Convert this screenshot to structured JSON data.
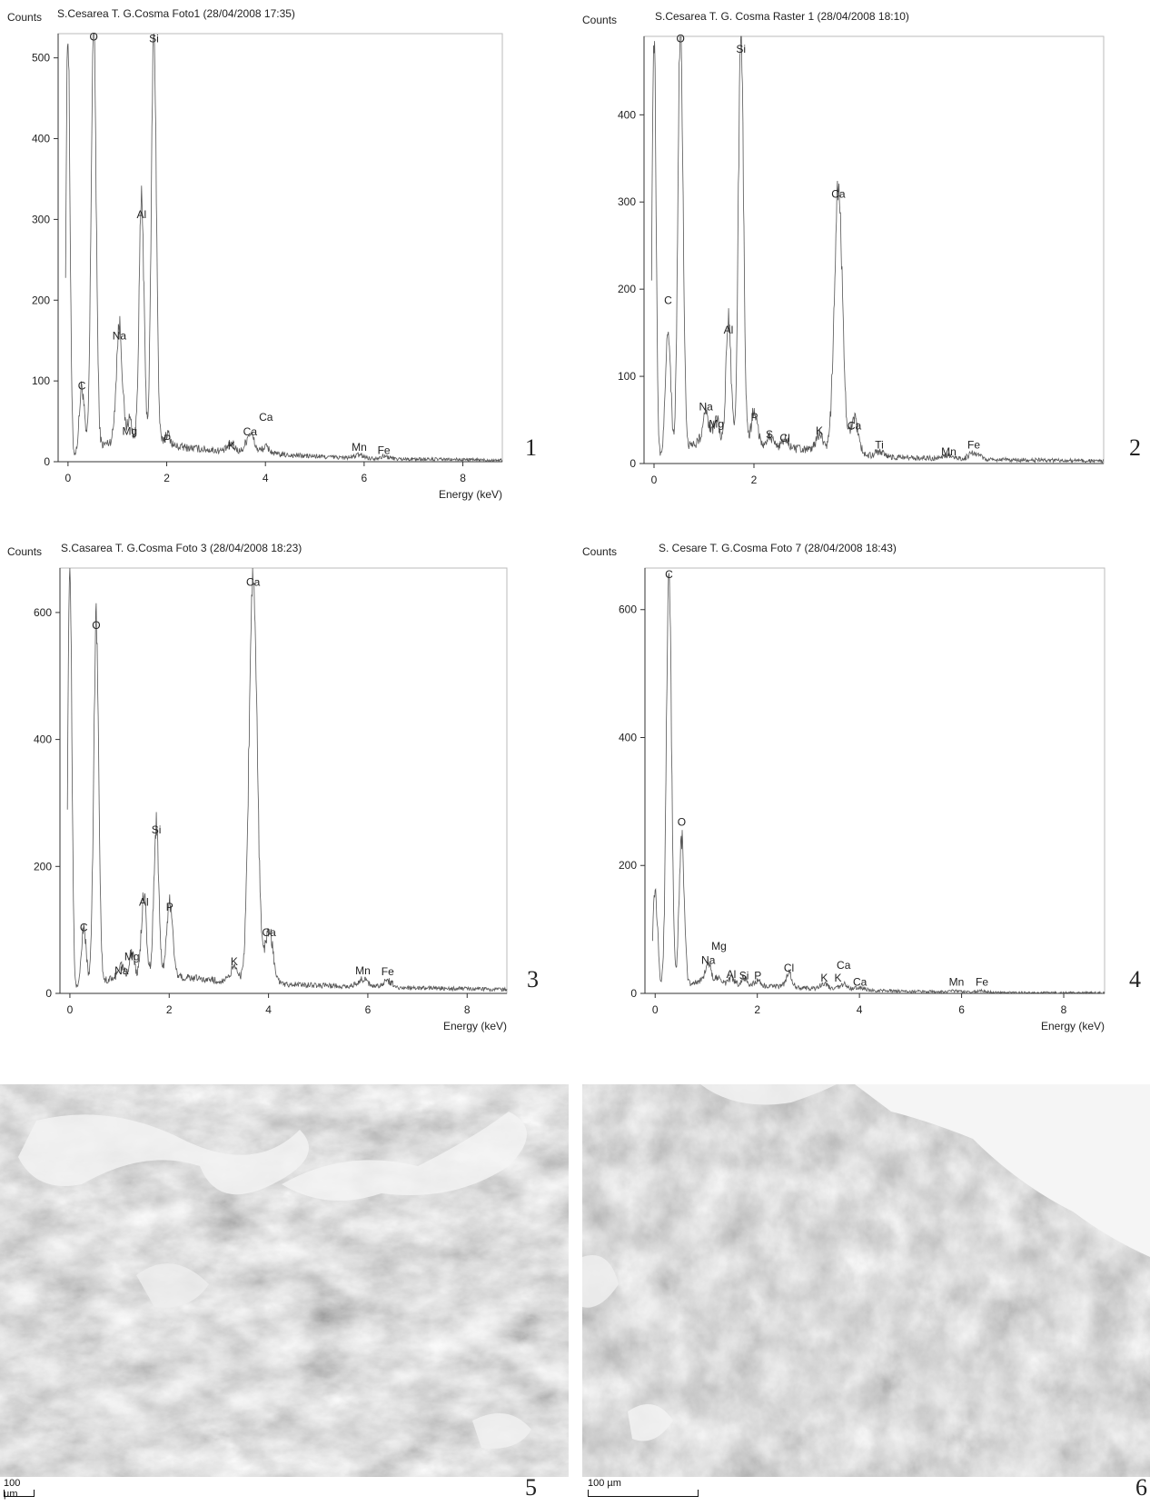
{
  "chart_data": [
    {
      "type": "line",
      "title": "S.Cesarea T. G.Cosma Foto1 (28/04/2008 17:35)",
      "ylabel": "Counts",
      "xlabel": "Energy (keV)",
      "xlim": [
        -0.2,
        8.8
      ],
      "ylim": [
        0,
        530
      ],
      "xticks": [
        0,
        2,
        4,
        6,
        8
      ],
      "xtick_labels": [
        "0",
        "2",
        "4",
        "6",
        "8"
      ],
      "yticks": [
        0,
        100,
        200,
        300,
        400,
        500
      ],
      "ytick_labels": [
        "0",
        "100",
        "200",
        "300",
        "400",
        "500"
      ],
      "grid": false,
      "peaks": [
        {
          "x": 0.0,
          "y": 530,
          "w": 0.04
        },
        {
          "x": 0.28,
          "y": 82,
          "w": 0.05
        },
        {
          "x": 0.52,
          "y": 530,
          "w": 0.05
        },
        {
          "x": 1.04,
          "y": 145,
          "w": 0.06
        },
        {
          "x": 1.25,
          "y": 30,
          "w": 0.05
        },
        {
          "x": 1.49,
          "y": 300,
          "w": 0.05
        },
        {
          "x": 1.74,
          "y": 520,
          "w": 0.05
        },
        {
          "x": 2.01,
          "y": 15,
          "w": 0.06
        },
        {
          "x": 3.31,
          "y": 10,
          "w": 0.07
        },
        {
          "x": 3.69,
          "y": 24,
          "w": 0.08
        },
        {
          "x": 4.01,
          "y": 8,
          "w": 0.08
        },
        {
          "x": 5.9,
          "y": 4,
          "w": 0.1
        },
        {
          "x": 6.4,
          "y": 3,
          "w": 0.1
        }
      ],
      "baseline": [
        {
          "x": 0.9,
          "y": 25
        },
        {
          "x": 2.0,
          "y": 20
        },
        {
          "x": 3.0,
          "y": 14
        },
        {
          "x": 4.5,
          "y": 8
        },
        {
          "x": 6.0,
          "y": 4
        },
        {
          "x": 8.8,
          "y": 2
        }
      ],
      "annotations": [
        {
          "text": "O",
          "x": 0.52,
          "y": 518
        },
        {
          "text": "Si",
          "x": 1.74,
          "y": 516
        },
        {
          "text": "Al",
          "x": 1.49,
          "y": 298
        },
        {
          "text": "Na",
          "x": 1.04,
          "y": 148
        },
        {
          "text": "C",
          "x": 0.28,
          "y": 86
        },
        {
          "text": "Mg",
          "x": 1.25,
          "y": 30
        },
        {
          "text": "P",
          "x": 2.01,
          "y": 20
        },
        {
          "text": "K",
          "x": 3.31,
          "y": 12
        },
        {
          "text": "Ca",
          "x": 3.69,
          "y": 29
        },
        {
          "text": "Ca",
          "x": 4.01,
          "y": 47
        },
        {
          "text": "Mn",
          "x": 5.9,
          "y": 10
        },
        {
          "text": "Fe",
          "x": 6.4,
          "y": 6
        }
      ],
      "panel_label": "1"
    },
    {
      "type": "line",
      "title": "S.Cesarea T. G. Cosma Raster 1 (28/04/2008 18:10)",
      "ylabel": "Counts",
      "xlabel": "",
      "xlim": [
        -0.2,
        9.0
      ],
      "ylim": [
        0,
        490
      ],
      "xticks": [
        0,
        2
      ],
      "xtick_labels": [
        "0",
        "2"
      ],
      "yticks": [
        0,
        100,
        200,
        300,
        400
      ],
      "ytick_labels": [
        "0",
        "100",
        "200",
        "300",
        "400"
      ],
      "grid": false,
      "peaks": [
        {
          "x": 0.0,
          "y": 490,
          "w": 0.04
        },
        {
          "x": 0.28,
          "y": 150,
          "w": 0.05
        },
        {
          "x": 0.53,
          "y": 490,
          "w": 0.05
        },
        {
          "x": 1.04,
          "y": 35,
          "w": 0.06
        },
        {
          "x": 1.25,
          "y": 30,
          "w": 0.05
        },
        {
          "x": 1.49,
          "y": 140,
          "w": 0.05
        },
        {
          "x": 1.74,
          "y": 480,
          "w": 0.05
        },
        {
          "x": 2.01,
          "y": 40,
          "w": 0.06
        },
        {
          "x": 2.31,
          "y": 12,
          "w": 0.06
        },
        {
          "x": 2.62,
          "y": 10,
          "w": 0.06
        },
        {
          "x": 3.31,
          "y": 20,
          "w": 0.07
        },
        {
          "x": 3.69,
          "y": 300,
          "w": 0.08
        },
        {
          "x": 4.01,
          "y": 40,
          "w": 0.08
        },
        {
          "x": 4.51,
          "y": 6,
          "w": 0.08
        },
        {
          "x": 5.9,
          "y": 4,
          "w": 0.1
        },
        {
          "x": 6.4,
          "y": 8,
          "w": 0.1
        }
      ],
      "baseline": [
        {
          "x": 0.9,
          "y": 25
        },
        {
          "x": 2.0,
          "y": 22
        },
        {
          "x": 3.0,
          "y": 16
        },
        {
          "x": 4.5,
          "y": 8
        },
        {
          "x": 6.0,
          "y": 5
        },
        {
          "x": 9.0,
          "y": 3
        }
      ],
      "annotations": [
        {
          "text": "O",
          "x": 0.53,
          "y": 480
        },
        {
          "text": "Si",
          "x": 1.74,
          "y": 468
        },
        {
          "text": "Ca",
          "x": 3.69,
          "y": 302
        },
        {
          "text": "C",
          "x": 0.28,
          "y": 180
        },
        {
          "text": "Al",
          "x": 1.49,
          "y": 146
        },
        {
          "text": "Na",
          "x": 1.04,
          "y": 58
        },
        {
          "text": "Mg",
          "x": 1.25,
          "y": 38
        },
        {
          "text": "P",
          "x": 2.01,
          "y": 46
        },
        {
          "text": "S",
          "x": 2.31,
          "y": 26
        },
        {
          "text": "Cl",
          "x": 2.62,
          "y": 22
        },
        {
          "text": "K",
          "x": 3.31,
          "y": 30
        },
        {
          "text": "Ca",
          "x": 4.01,
          "y": 36
        },
        {
          "text": "Ti",
          "x": 4.51,
          "y": 14
        },
        {
          "text": "Mn",
          "x": 5.9,
          "y": 6
        },
        {
          "text": "Fe",
          "x": 6.4,
          "y": 14
        }
      ],
      "panel_label": "2"
    },
    {
      "type": "line",
      "title": "S.Casarea T. G.Cosma Foto 3 (28/04/2008 18:23)",
      "ylabel": "Counts",
      "xlabel": "Energy (keV)",
      "xlim": [
        -0.2,
        8.8
      ],
      "ylim": [
        0,
        670
      ],
      "xticks": [
        0,
        2,
        4,
        6,
        8
      ],
      "xtick_labels": [
        "0",
        "2",
        "4",
        "6",
        "8"
      ],
      "yticks": [
        0,
        200,
        400,
        600
      ],
      "ytick_labels": [
        "0",
        "200",
        "400",
        "600"
      ],
      "grid": false,
      "peaks": [
        {
          "x": 0.0,
          "y": 670,
          "w": 0.04
        },
        {
          "x": 0.28,
          "y": 90,
          "w": 0.05
        },
        {
          "x": 0.53,
          "y": 570,
          "w": 0.05
        },
        {
          "x": 1.04,
          "y": 18,
          "w": 0.06
        },
        {
          "x": 1.25,
          "y": 40,
          "w": 0.05
        },
        {
          "x": 1.49,
          "y": 130,
          "w": 0.05
        },
        {
          "x": 1.74,
          "y": 240,
          "w": 0.05
        },
        {
          "x": 2.01,
          "y": 115,
          "w": 0.06
        },
        {
          "x": 3.31,
          "y": 25,
          "w": 0.07
        },
        {
          "x": 3.69,
          "y": 650,
          "w": 0.08
        },
        {
          "x": 4.01,
          "y": 85,
          "w": 0.08
        },
        {
          "x": 5.9,
          "y": 12,
          "w": 0.1
        },
        {
          "x": 6.4,
          "y": 10,
          "w": 0.1
        }
      ],
      "baseline": [
        {
          "x": 0.9,
          "y": 25
        },
        {
          "x": 2.0,
          "y": 28
        },
        {
          "x": 3.0,
          "y": 20
        },
        {
          "x": 4.5,
          "y": 14
        },
        {
          "x": 6.0,
          "y": 10
        },
        {
          "x": 8.8,
          "y": 6
        }
      ],
      "annotations": [
        {
          "text": "Ca",
          "x": 3.69,
          "y": 638
        },
        {
          "text": "O",
          "x": 0.53,
          "y": 570
        },
        {
          "text": "Si",
          "x": 1.74,
          "y": 248
        },
        {
          "text": "Al",
          "x": 1.49,
          "y": 134
        },
        {
          "text": "P",
          "x": 2.01,
          "y": 126
        },
        {
          "text": "C",
          "x": 0.28,
          "y": 94
        },
        {
          "text": "Mg",
          "x": 1.25,
          "y": 48
        },
        {
          "text": "Na",
          "x": 1.04,
          "y": 26
        },
        {
          "text": "K",
          "x": 3.31,
          "y": 40
        },
        {
          "text": "Ca",
          "x": 4.01,
          "y": 86
        },
        {
          "text": "Mn",
          "x": 5.9,
          "y": 26
        },
        {
          "text": "Fe",
          "x": 6.4,
          "y": 24
        }
      ],
      "panel_label": "3"
    },
    {
      "type": "line",
      "title": "S. Cesare T. G.Cosma Foto 7 (28/04/2008 18:43)",
      "ylabel": "Counts",
      "xlabel": "Energy (keV)",
      "xlim": [
        -0.2,
        8.8
      ],
      "ylim": [
        0,
        665
      ],
      "xticks": [
        0,
        2,
        4,
        6,
        8
      ],
      "xtick_labels": [
        "0",
        "2",
        "4",
        "6",
        "8"
      ],
      "yticks": [
        0,
        200,
        400,
        600
      ],
      "ytick_labels": [
        "0",
        "200",
        "400",
        "600"
      ],
      "grid": false,
      "peaks": [
        {
          "x": 0.0,
          "y": 150,
          "w": 0.05
        },
        {
          "x": 0.27,
          "y": 650,
          "w": 0.05
        },
        {
          "x": 0.52,
          "y": 230,
          "w": 0.05
        },
        {
          "x": 1.04,
          "y": 30,
          "w": 0.06
        },
        {
          "x": 1.25,
          "y": 12,
          "w": 0.05
        },
        {
          "x": 1.49,
          "y": 10,
          "w": 0.05
        },
        {
          "x": 1.74,
          "y": 12,
          "w": 0.05
        },
        {
          "x": 2.01,
          "y": 8,
          "w": 0.06
        },
        {
          "x": 2.62,
          "y": 22,
          "w": 0.06
        },
        {
          "x": 3.31,
          "y": 8,
          "w": 0.07
        },
        {
          "x": 3.69,
          "y": 8,
          "w": 0.08
        },
        {
          "x": 4.01,
          "y": 4,
          "w": 0.08
        },
        {
          "x": 5.9,
          "y": 2,
          "w": 0.1
        },
        {
          "x": 6.4,
          "y": 2,
          "w": 0.1
        }
      ],
      "baseline": [
        {
          "x": 0.9,
          "y": 18
        },
        {
          "x": 2.0,
          "y": 12
        },
        {
          "x": 3.0,
          "y": 8
        },
        {
          "x": 4.5,
          "y": 4
        },
        {
          "x": 6.0,
          "y": 2
        },
        {
          "x": 8.8,
          "y": 1
        }
      ],
      "annotations": [
        {
          "text": "C",
          "x": 0.27,
          "y": 645
        },
        {
          "text": "O",
          "x": 0.52,
          "y": 258
        },
        {
          "text": "Mg",
          "x": 1.25,
          "y": 64
        },
        {
          "text": "Na",
          "x": 1.04,
          "y": 42
        },
        {
          "text": "Al",
          "x": 1.49,
          "y": 20
        },
        {
          "text": "Si",
          "x": 1.74,
          "y": 18
        },
        {
          "text": "P",
          "x": 2.01,
          "y": 18
        },
        {
          "text": "Cl",
          "x": 2.62,
          "y": 30
        },
        {
          "text": "K",
          "x": 3.31,
          "y": 14
        },
        {
          "text": "K",
          "x": 3.58,
          "y": 14
        },
        {
          "text": "Ca",
          "x": 3.69,
          "y": 34
        },
        {
          "text": "Ca",
          "x": 4.01,
          "y": 8
        },
        {
          "text": "Mn",
          "x": 5.9,
          "y": 8
        },
        {
          "text": "Fe",
          "x": 6.4,
          "y": 8
        }
      ],
      "panel_label": "4"
    }
  ],
  "photos": [
    {
      "panel_label": "5",
      "scale_label": "100 µm"
    },
    {
      "panel_label": "6",
      "scale_label": "100 µm"
    }
  ]
}
